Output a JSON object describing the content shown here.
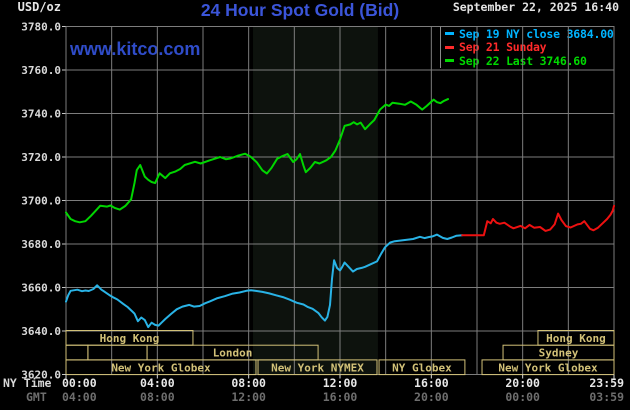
{
  "header": {
    "unit_label": "USD/oz",
    "title": "24 Hour Spot Gold (Bid)",
    "datetime": "September 22, 2025 16:40",
    "watermark": "www.kitco.com"
  },
  "legend": {
    "items": [
      {
        "label": "Sep 19 NY close 3684.00",
        "color": "#00b4ff"
      },
      {
        "label": "Sep 21 Sunday",
        "color": "#ff2a2a"
      },
      {
        "label": "Sep 22 Last 3746.60",
        "color": "#00d900"
      }
    ]
  },
  "axis_rows": {
    "row1_label": "NY Time",
    "row2_label": "GMT"
  },
  "chart_data": {
    "type": "line",
    "title": "24 Hour Spot Gold (Bid)",
    "ylabel": "USD/oz",
    "ylim": [
      3620,
      3780
    ],
    "y_tick_step": 20,
    "y_ticks": [
      "3780.0",
      "3760.0",
      "3740.0",
      "3720.0",
      "3700.0",
      "3680.0",
      "3660.0",
      "3640.0",
      "3620.0"
    ],
    "x_range_hours": [
      0,
      24
    ],
    "x_minor_step_hours": 2,
    "x_ticks_ny": [
      [
        0,
        "00:00"
      ],
      [
        4,
        "04:00"
      ],
      [
        8,
        "08:00"
      ],
      [
        12,
        "12:00"
      ],
      [
        16,
        "16:00"
      ],
      [
        20,
        "20:00"
      ],
      [
        24,
        "23:59"
      ]
    ],
    "x_ticks_gmt": [
      [
        0,
        "04:00"
      ],
      [
        4,
        "08:00"
      ],
      [
        8,
        "12:00"
      ],
      [
        12,
        "16:00"
      ],
      [
        16,
        "20:00"
      ],
      [
        20,
        "00:00"
      ],
      [
        24,
        "03:59"
      ]
    ],
    "grid": true,
    "grid_color": "#7d7d7d",
    "band": {
      "name": "nymex-hours",
      "from_hour": 8.19,
      "to_hour": 13.66,
      "color": "#0d120d"
    },
    "legend_position": "top-right",
    "ny_close_value": 3684.0,
    "last_value": 3746.6,
    "series": [
      {
        "name": "Sep 19 NY close",
        "color": "#29b3e6",
        "points": [
          [
            0,
            3653.5
          ],
          [
            0.1,
            3656.5
          ],
          [
            0.2,
            3658.5
          ],
          [
            0.5,
            3659
          ],
          [
            0.7,
            3658.3
          ],
          [
            0.85,
            3658.6
          ],
          [
            1.0,
            3658.4
          ],
          [
            1.2,
            3659.3
          ],
          [
            1.36,
            3661
          ],
          [
            1.55,
            3659
          ],
          [
            1.7,
            3658
          ],
          [
            1.9,
            3656.5
          ],
          [
            2.1,
            3655.3
          ],
          [
            2.25,
            3654.5
          ],
          [
            2.5,
            3652.5
          ],
          [
            2.7,
            3651
          ],
          [
            2.9,
            3649
          ],
          [
            3.0,
            3648
          ],
          [
            3.15,
            3644.5
          ],
          [
            3.3,
            3646.2
          ],
          [
            3.45,
            3645
          ],
          [
            3.6,
            3641.8
          ],
          [
            3.75,
            3643.8
          ],
          [
            3.9,
            3642.8
          ],
          [
            4.05,
            3642.5
          ],
          [
            4.2,
            3644
          ],
          [
            4.35,
            3645.5
          ],
          [
            4.6,
            3647.8
          ],
          [
            4.85,
            3650
          ],
          [
            5.1,
            3651.2
          ],
          [
            5.4,
            3652
          ],
          [
            5.6,
            3651.2
          ],
          [
            5.85,
            3651.5
          ],
          [
            6.1,
            3652.8
          ],
          [
            6.3,
            3653.6
          ],
          [
            6.6,
            3655
          ],
          [
            6.95,
            3656
          ],
          [
            7.3,
            3657.2
          ],
          [
            7.6,
            3657.7
          ],
          [
            7.9,
            3658.5
          ],
          [
            8.1,
            3658.7
          ],
          [
            8.35,
            3658.4
          ],
          [
            8.6,
            3658
          ],
          [
            8.9,
            3657.3
          ],
          [
            9.2,
            3656.4
          ],
          [
            9.5,
            3655.6
          ],
          [
            9.8,
            3654.4
          ],
          [
            10.1,
            3653
          ],
          [
            10.4,
            3652.2
          ],
          [
            10.6,
            3651
          ],
          [
            10.8,
            3650.2
          ],
          [
            11.05,
            3648.3
          ],
          [
            11.2,
            3646.3
          ],
          [
            11.34,
            3644.8
          ],
          [
            11.45,
            3646.5
          ],
          [
            11.56,
            3652
          ],
          [
            11.65,
            3664
          ],
          [
            11.74,
            3672.5
          ],
          [
            11.87,
            3669
          ],
          [
            12.0,
            3667.8
          ],
          [
            12.1,
            3669.5
          ],
          [
            12.2,
            3671.5
          ],
          [
            12.35,
            3669.8
          ],
          [
            12.57,
            3667.3
          ],
          [
            12.74,
            3668.5
          ],
          [
            12.95,
            3669
          ],
          [
            13.1,
            3669.5
          ],
          [
            13.3,
            3670.5
          ],
          [
            13.62,
            3672
          ],
          [
            13.8,
            3675.5
          ],
          [
            13.97,
            3678.5
          ],
          [
            14.2,
            3680.7
          ],
          [
            14.4,
            3681.3
          ],
          [
            14.8,
            3681.8
          ],
          [
            15.2,
            3682.3
          ],
          [
            15.5,
            3683.3
          ],
          [
            15.7,
            3682.7
          ],
          [
            15.9,
            3683.2
          ],
          [
            16.05,
            3683.5
          ],
          [
            16.25,
            3684.3
          ],
          [
            16.5,
            3682.8
          ],
          [
            16.7,
            3682.3
          ],
          [
            16.9,
            3683
          ],
          [
            17.1,
            3683.8
          ],
          [
            17.35,
            3684
          ]
        ]
      },
      {
        "name": "Sep 21 Sunday",
        "color": "#ee1111",
        "points": [
          [
            17.35,
            3684
          ],
          [
            18.3,
            3684
          ],
          [
            18.45,
            3690.5
          ],
          [
            18.6,
            3689.5
          ],
          [
            18.7,
            3691.5
          ],
          [
            18.85,
            3689.8
          ],
          [
            19.0,
            3689.3
          ],
          [
            19.2,
            3689.8
          ],
          [
            19.45,
            3688
          ],
          [
            19.6,
            3687.2
          ],
          [
            19.9,
            3688.3
          ],
          [
            20.1,
            3687.2
          ],
          [
            20.3,
            3688.8
          ],
          [
            20.5,
            3687.5
          ],
          [
            20.76,
            3687.8
          ],
          [
            21.0,
            3686
          ],
          [
            21.2,
            3686.6
          ],
          [
            21.4,
            3689
          ],
          [
            21.55,
            3694
          ],
          [
            21.7,
            3691
          ],
          [
            21.9,
            3688.2
          ],
          [
            22.1,
            3687.6
          ],
          [
            22.4,
            3689
          ],
          [
            22.55,
            3689.3
          ],
          [
            22.7,
            3690.5
          ],
          [
            22.95,
            3687
          ],
          [
            23.1,
            3686.3
          ],
          [
            23.3,
            3687.5
          ],
          [
            23.5,
            3689.5
          ],
          [
            23.7,
            3691.5
          ],
          [
            23.85,
            3693.5
          ],
          [
            23.95,
            3695.5
          ],
          [
            24.0,
            3697.5
          ]
        ]
      },
      {
        "name": "Sep 22 Last",
        "color": "#00d600",
        "points": [
          [
            0,
            3694.5
          ],
          [
            0.2,
            3691.5
          ],
          [
            0.4,
            3690.5
          ],
          [
            0.6,
            3690
          ],
          [
            0.85,
            3690.5
          ],
          [
            1.1,
            3693
          ],
          [
            1.5,
            3697.6
          ],
          [
            1.8,
            3697.2
          ],
          [
            1.95,
            3697.7
          ],
          [
            2.15,
            3696.5
          ],
          [
            2.35,
            3695.8
          ],
          [
            2.6,
            3697.5
          ],
          [
            2.85,
            3700.5
          ],
          [
            3.0,
            3708
          ],
          [
            3.1,
            3714
          ],
          [
            3.25,
            3716.3
          ],
          [
            3.45,
            3711
          ],
          [
            3.6,
            3709.5
          ],
          [
            3.75,
            3708.5
          ],
          [
            3.9,
            3708
          ],
          [
            4.1,
            3712.5
          ],
          [
            4.35,
            3710.3
          ],
          [
            4.55,
            3712.5
          ],
          [
            4.8,
            3713.4
          ],
          [
            5.0,
            3714.5
          ],
          [
            5.2,
            3716.3
          ],
          [
            5.65,
            3717.8
          ],
          [
            5.9,
            3717
          ],
          [
            6.3,
            3718.5
          ],
          [
            6.75,
            3720
          ],
          [
            7.0,
            3719
          ],
          [
            7.2,
            3719.3
          ],
          [
            7.5,
            3720.5
          ],
          [
            7.85,
            3721.5
          ],
          [
            8.1,
            3720
          ],
          [
            8.35,
            3717.6
          ],
          [
            8.6,
            3713.9
          ],
          [
            8.8,
            3712.4
          ],
          [
            9.0,
            3715
          ],
          [
            9.25,
            3719.2
          ],
          [
            9.5,
            3720.5
          ],
          [
            9.7,
            3721.4
          ],
          [
            9.95,
            3717.7
          ],
          [
            10.1,
            3719
          ],
          [
            10.25,
            3721.4
          ],
          [
            10.4,
            3716
          ],
          [
            10.5,
            3713
          ],
          [
            10.7,
            3715
          ],
          [
            10.9,
            3717.7
          ],
          [
            11.1,
            3717
          ],
          [
            11.4,
            3718.5
          ],
          [
            11.6,
            3720
          ],
          [
            11.8,
            3723
          ],
          [
            12.0,
            3728
          ],
          [
            12.2,
            3734.3
          ],
          [
            12.45,
            3735
          ],
          [
            12.6,
            3736
          ],
          [
            12.75,
            3735
          ],
          [
            12.9,
            3735.8
          ],
          [
            13.1,
            3732.8
          ],
          [
            13.3,
            3735
          ],
          [
            13.5,
            3737
          ],
          [
            13.75,
            3741.8
          ],
          [
            14.0,
            3744.1
          ],
          [
            14.15,
            3743.5
          ],
          [
            14.3,
            3744.9
          ],
          [
            14.6,
            3744.5
          ],
          [
            14.85,
            3744
          ],
          [
            15.1,
            3745.5
          ],
          [
            15.35,
            3744
          ],
          [
            15.6,
            3741.8
          ],
          [
            15.8,
            3743.5
          ],
          [
            16.1,
            3746.4
          ],
          [
            16.25,
            3745.2
          ],
          [
            16.4,
            3744.8
          ],
          [
            16.55,
            3745.8
          ],
          [
            16.73,
            3746.6
          ]
        ]
      }
    ],
    "sessions": {
      "color": "#d2c178",
      "rows": [
        [
          {
            "from": 0,
            "to": 5.56,
            "label": "Hong Kong"
          },
          {
            "from": 20.67,
            "to": 24,
            "label": "Hong Kong"
          }
        ],
        [
          {
            "from": 0,
            "to": 0.96,
            "label": ""
          },
          {
            "from": 0.96,
            "to": 3.55,
            "label": ""
          },
          {
            "from": 3.55,
            "to": 11.04,
            "label": "London"
          },
          {
            "from": 19.14,
            "to": 24,
            "label": "Sydney"
          }
        ],
        [
          {
            "from": 0,
            "to": 8.32,
            "label": "New York Globex"
          },
          {
            "from": 8.41,
            "to": 13.62,
            "label": "New York NYMEX"
          },
          {
            "from": 13.71,
            "to": 17.47,
            "label": "NY Globex"
          },
          {
            "from": 18.22,
            "to": 24,
            "label": "New York Globex"
          }
        ]
      ]
    }
  }
}
